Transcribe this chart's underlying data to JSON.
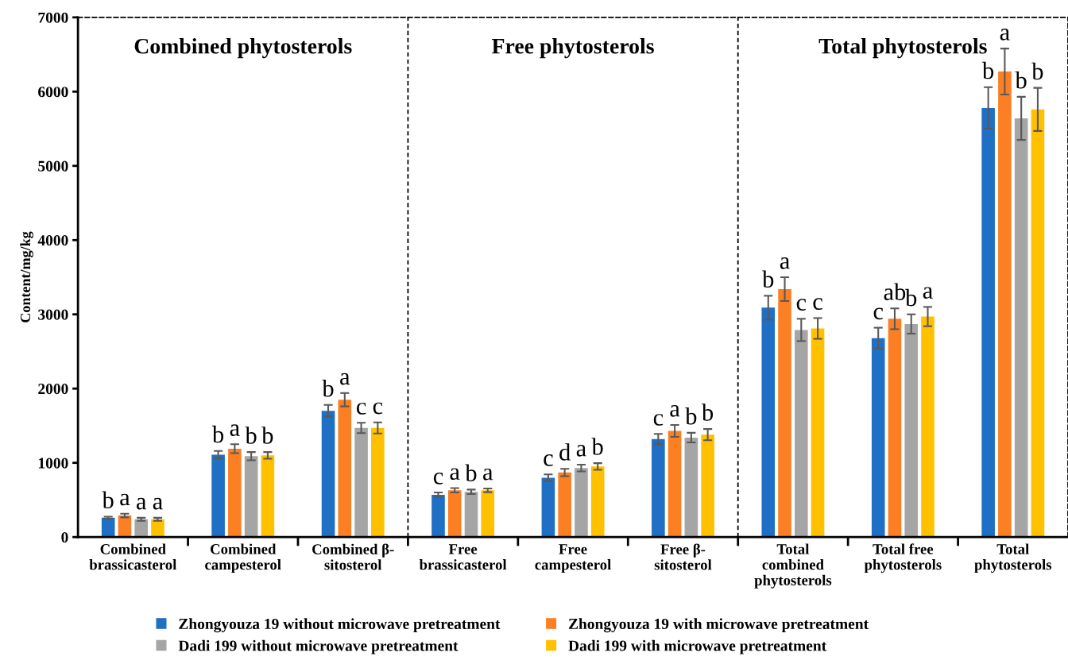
{
  "chart_data": {
    "type": "bar",
    "ylabel": "Content/mg/kg",
    "categories": [
      "Combined\nbrassicasterol",
      "Combined\ncampesterol",
      "Combined β-\nsitosterol",
      "Free\nbrassicasterol",
      "Free\ncampesterol",
      "Free β-\nsitosterol",
      "Total\ncombined\nphytosterols",
      "Total free\nphytosterols",
      "Total\nphytosterols"
    ],
    "series": [
      {
        "name": "Zhongyouza 19 without microwave pretreatment",
        "color": "#1f6fc5",
        "values": [
          260,
          1110,
          1700,
          570,
          800,
          1320,
          3090,
          2680,
          5780
        ],
        "errors": [
          15,
          50,
          80,
          30,
          45,
          70,
          160,
          140,
          280
        ],
        "value_labels": [
          "b",
          "b",
          "b",
          "c",
          "c",
          "c",
          "b",
          "c",
          "b"
        ]
      },
      {
        "name": "Zhongyouza 19 with microwave pretreatment",
        "color": "#fd7f23",
        "values": [
          290,
          1190,
          1850,
          630,
          870,
          1430,
          3340,
          2940,
          6270
        ],
        "errors": [
          25,
          60,
          90,
          30,
          50,
          80,
          160,
          140,
          310
        ],
        "value_labels": [
          "a",
          "a",
          "a",
          "a",
          "d",
          "a",
          "a",
          "ab",
          "a"
        ]
      },
      {
        "name": "Dadi 199 without microwave pretreatment",
        "color": "#a5a5a5",
        "values": [
          240,
          1090,
          1470,
          610,
          930,
          1340,
          2790,
          2870,
          5640
        ],
        "errors": [
          20,
          55,
          70,
          30,
          45,
          65,
          150,
          130,
          290
        ],
        "value_labels": [
          "a",
          "b",
          "c",
          "b",
          "a",
          "b",
          "c",
          "b",
          "b"
        ]
      },
      {
        "name": "Dadi 199 with microwave pretreatment",
        "color": "#ffc000",
        "values": [
          240,
          1100,
          1470,
          630,
          950,
          1380,
          2810,
          2970,
          5760
        ],
        "errors": [
          20,
          45,
          75,
          25,
          45,
          75,
          140,
          130,
          290
        ],
        "value_labels": [
          "a",
          "b",
          "c",
          "a",
          "b",
          "b",
          "c",
          "a",
          "b"
        ]
      }
    ],
    "ylim": [
      0,
      7000
    ],
    "yticks": [
      0,
      1000,
      2000,
      3000,
      4000,
      5000,
      6000,
      7000
    ],
    "annotations": [
      "Combined phytosterols",
      "Free phytosterols",
      "Total phytosterols"
    ],
    "grid": false,
    "legend": "bottom"
  }
}
